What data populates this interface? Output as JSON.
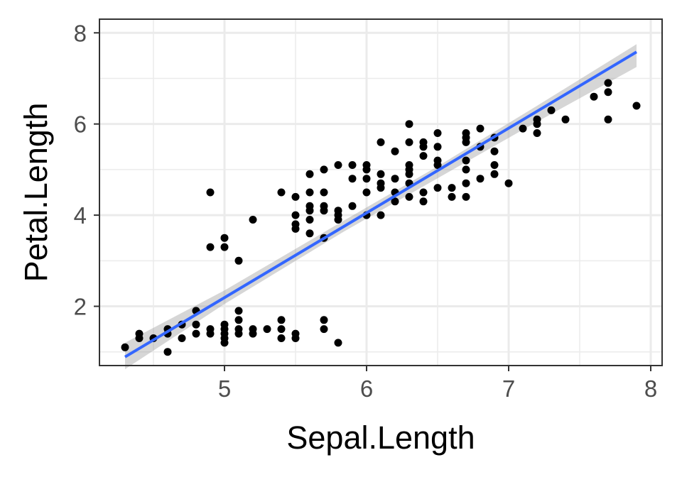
{
  "chart_data": {
    "type": "scatter",
    "title": "",
    "xlabel": "Sepal.Length",
    "ylabel": "Petal.Length",
    "xlim": [
      4.12,
      8.08
    ],
    "ylim": [
      0.7,
      8.3
    ],
    "x_ticks": [
      5,
      6,
      7,
      8
    ],
    "y_ticks": [
      2,
      4,
      6,
      8
    ],
    "grid": true,
    "legend": "none",
    "colors": {
      "points": "#000000",
      "fit_line": "#3366ff",
      "confidence_band": "#999999",
      "grid": "#ebebeb",
      "panel_border": "#333333"
    },
    "series": [
      {
        "points": [
          [
            4.3,
            1.1
          ],
          [
            4.4,
            1.3
          ],
          [
            4.4,
            1.4
          ],
          [
            4.5,
            1.3
          ],
          [
            4.6,
            1.0
          ],
          [
            4.6,
            1.4
          ],
          [
            4.6,
            1.5
          ],
          [
            4.7,
            1.3
          ],
          [
            4.7,
            1.6
          ],
          [
            4.8,
            1.4
          ],
          [
            4.8,
            1.6
          ],
          [
            4.8,
            1.9
          ],
          [
            4.9,
            1.4
          ],
          [
            4.9,
            1.5
          ],
          [
            4.9,
            3.3
          ],
          [
            4.9,
            4.5
          ],
          [
            5.0,
            1.2
          ],
          [
            5.0,
            1.3
          ],
          [
            5.0,
            1.4
          ],
          [
            5.0,
            1.5
          ],
          [
            5.0,
            1.6
          ],
          [
            5.0,
            3.3
          ],
          [
            5.0,
            3.5
          ],
          [
            5.1,
            1.4
          ],
          [
            5.1,
            1.5
          ],
          [
            5.1,
            1.7
          ],
          [
            5.1,
            1.9
          ],
          [
            5.1,
            3.0
          ],
          [
            5.2,
            1.4
          ],
          [
            5.2,
            1.5
          ],
          [
            5.2,
            3.9
          ],
          [
            5.3,
            1.5
          ],
          [
            5.4,
            1.3
          ],
          [
            5.4,
            1.5
          ],
          [
            5.4,
            1.7
          ],
          [
            5.4,
            4.5
          ],
          [
            5.5,
            1.3
          ],
          [
            5.5,
            1.4
          ],
          [
            5.5,
            3.7
          ],
          [
            5.5,
            3.8
          ],
          [
            5.5,
            4.0
          ],
          [
            5.5,
            4.4
          ],
          [
            5.6,
            3.6
          ],
          [
            5.6,
            3.9
          ],
          [
            5.6,
            4.1
          ],
          [
            5.6,
            4.2
          ],
          [
            5.6,
            4.5
          ],
          [
            5.6,
            4.9
          ],
          [
            5.7,
            1.5
          ],
          [
            5.7,
            1.7
          ],
          [
            5.7,
            3.5
          ],
          [
            5.7,
            4.1
          ],
          [
            5.7,
            4.2
          ],
          [
            5.7,
            4.5
          ],
          [
            5.7,
            5.0
          ],
          [
            5.8,
            1.2
          ],
          [
            5.8,
            3.9
          ],
          [
            5.8,
            4.0
          ],
          [
            5.8,
            4.1
          ],
          [
            5.8,
            5.1
          ],
          [
            5.9,
            4.2
          ],
          [
            5.9,
            4.8
          ],
          [
            5.9,
            5.1
          ],
          [
            6.0,
            4.0
          ],
          [
            6.0,
            4.5
          ],
          [
            6.0,
            4.8
          ],
          [
            6.0,
            5.0
          ],
          [
            6.0,
            5.1
          ],
          [
            6.1,
            4.0
          ],
          [
            6.1,
            4.6
          ],
          [
            6.1,
            4.7
          ],
          [
            6.1,
            4.9
          ],
          [
            6.1,
            5.6
          ],
          [
            6.2,
            4.3
          ],
          [
            6.2,
            4.5
          ],
          [
            6.2,
            4.8
          ],
          [
            6.2,
            5.4
          ],
          [
            6.3,
            4.4
          ],
          [
            6.3,
            4.7
          ],
          [
            6.3,
            4.9
          ],
          [
            6.3,
            5.0
          ],
          [
            6.3,
            5.1
          ],
          [
            6.3,
            5.6
          ],
          [
            6.3,
            6.0
          ],
          [
            6.4,
            4.3
          ],
          [
            6.4,
            4.5
          ],
          [
            6.4,
            5.3
          ],
          [
            6.4,
            5.5
          ],
          [
            6.4,
            5.6
          ],
          [
            6.5,
            4.6
          ],
          [
            6.5,
            5.1
          ],
          [
            6.5,
            5.2
          ],
          [
            6.5,
            5.5
          ],
          [
            6.5,
            5.8
          ],
          [
            6.6,
            4.4
          ],
          [
            6.6,
            4.6
          ],
          [
            6.7,
            4.4
          ],
          [
            6.7,
            4.7
          ],
          [
            6.7,
            5.0
          ],
          [
            6.7,
            5.2
          ],
          [
            6.7,
            5.6
          ],
          [
            6.7,
            5.7
          ],
          [
            6.7,
            5.8
          ],
          [
            6.8,
            4.8
          ],
          [
            6.8,
            5.5
          ],
          [
            6.8,
            5.9
          ],
          [
            6.9,
            4.9
          ],
          [
            6.9,
            5.1
          ],
          [
            6.9,
            5.4
          ],
          [
            6.9,
            5.7
          ],
          [
            7.0,
            4.7
          ],
          [
            7.1,
            5.9
          ],
          [
            7.2,
            5.8
          ],
          [
            7.2,
            6.0
          ],
          [
            7.2,
            6.1
          ],
          [
            7.3,
            6.3
          ],
          [
            7.4,
            6.1
          ],
          [
            7.6,
            6.6
          ],
          [
            7.7,
            6.1
          ],
          [
            7.7,
            6.7
          ],
          [
            7.7,
            6.9
          ],
          [
            7.9,
            6.4
          ]
        ]
      }
    ],
    "fit": {
      "method": "linear",
      "intercept": -7.101,
      "slope": 1.8584,
      "x_range": [
        4.3,
        7.9
      ],
      "band": [
        [
          4.3,
          0.62,
          1.2
        ],
        [
          5.0,
          2.05,
          2.35
        ],
        [
          5.84,
          3.64,
          3.88
        ],
        [
          6.5,
          4.81,
          5.07
        ],
        [
          7.2,
          6.05,
          6.4
        ],
        [
          7.9,
          7.25,
          7.75
        ]
      ]
    }
  }
}
